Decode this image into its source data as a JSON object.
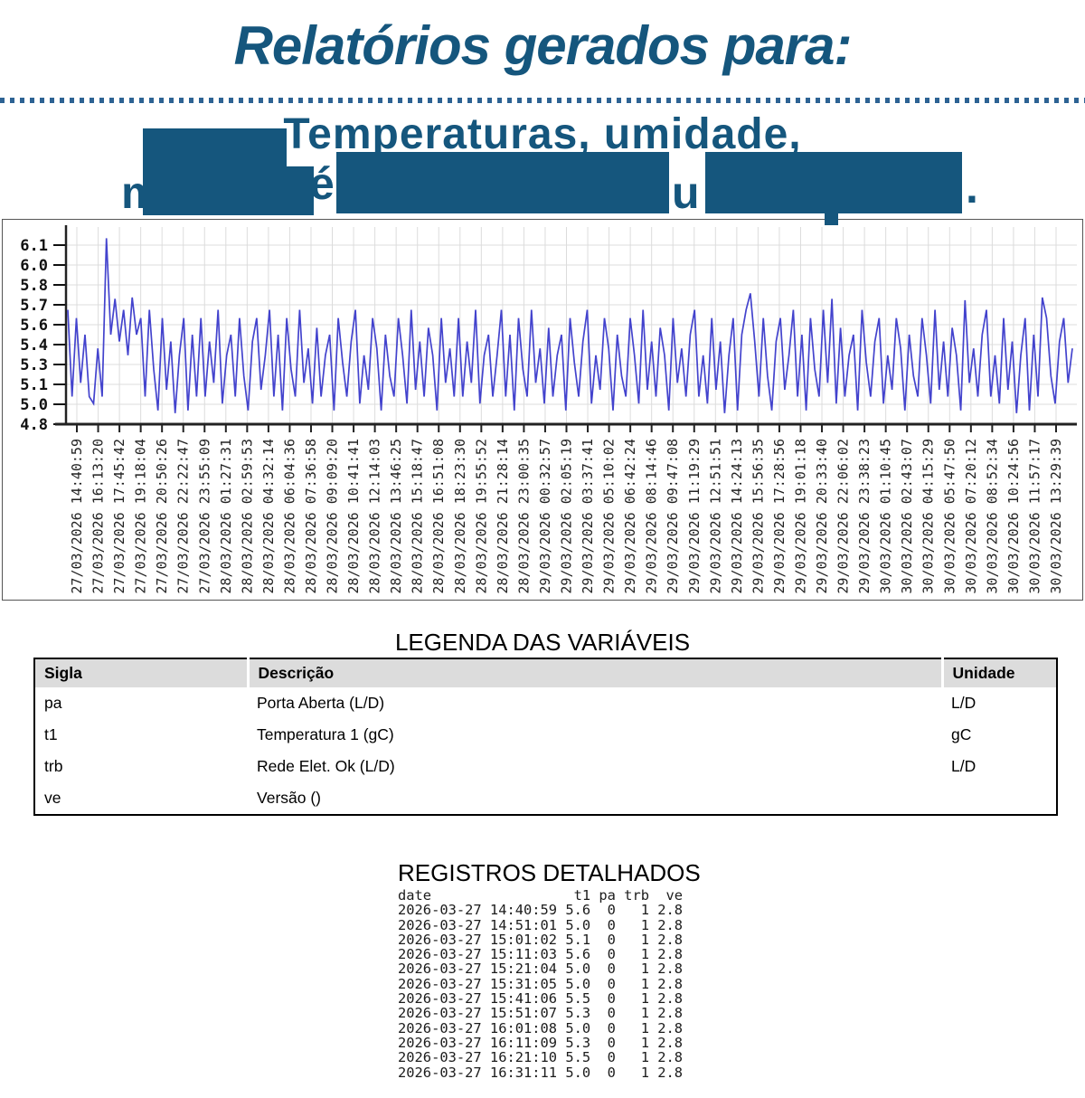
{
  "colors": {
    "accent_blue": "#15567d",
    "separator_blue": "#2d6394",
    "chart_line": "#4343cd",
    "grid": "#dcdcdc",
    "table_header_bg": "#dcdcdc"
  },
  "header": {
    "title": "Relatórios gerados para:",
    "subtitle_line1": "Temperaturas, umidade,",
    "subtitle_line2_fragments": {
      "f1": "m",
      "f2": "é",
      "f3": "u",
      "f4": "."
    }
  },
  "chart_data": {
    "type": "line",
    "title": "",
    "xlabel": "",
    "ylabel": "",
    "grid": true,
    "legend_position": "none",
    "ylim": [
      4.8,
      6.2
    ],
    "y_ticks": [
      "6.1",
      "6.0",
      "5.8",
      "5.7",
      "5.6",
      "5.4",
      "5.3",
      "5.1",
      "5.0",
      "4.8"
    ],
    "x_tick_labels": [
      "27/03/2026 14:40:59",
      "27/03/2026 16:13:20",
      "27/03/2026 17:45:42",
      "27/03/2026 19:18:04",
      "27/03/2026 20:50:26",
      "27/03/2026 22:22:47",
      "27/03/2026 23:55:09",
      "28/03/2026 01:27:31",
      "28/03/2026 02:59:53",
      "28/03/2026 04:32:14",
      "28/03/2026 06:04:36",
      "28/03/2026 07:36:58",
      "28/03/2026 09:09:20",
      "28/03/2026 10:41:41",
      "28/03/2026 12:14:03",
      "28/03/2026 13:46:25",
      "28/03/2026 15:18:47",
      "28/03/2026 16:51:08",
      "28/03/2026 18:23:30",
      "28/03/2026 19:55:52",
      "28/03/2026 21:28:14",
      "28/03/2026 23:00:35",
      "29/03/2026 00:32:57",
      "29/03/2026 02:05:19",
      "29/03/2026 03:37:41",
      "29/03/2026 05:10:02",
      "29/03/2026 06:42:24",
      "29/03/2026 08:14:46",
      "29/03/2026 09:47:08",
      "29/03/2026 11:19:29",
      "29/03/2026 12:51:51",
      "29/03/2026 14:24:13",
      "29/03/2026 15:56:35",
      "29/03/2026 17:28:56",
      "29/03/2026 19:01:18",
      "29/03/2026 20:33:40",
      "29/03/2026 22:06:02",
      "29/03/2026 23:38:23",
      "30/03/2026 01:10:45",
      "30/03/2026 02:43:07",
      "30/03/2026 04:15:29",
      "30/03/2026 05:47:50",
      "30/03/2026 07:20:12",
      "30/03/2026 08:52:34",
      "30/03/2026 10:24:56",
      "30/03/2026 11:57:17",
      "30/03/2026 13:29:39"
    ],
    "series": [
      {
        "name": "t1",
        "color": "#4343cd",
        "values": [
          5.63,
          5.0,
          5.57,
          5.1,
          5.45,
          5.0,
          4.95,
          5.35,
          5.0,
          6.15,
          5.45,
          5.71,
          5.4,
          5.63,
          5.3,
          5.72,
          5.45,
          5.57,
          5.0,
          5.63,
          5.2,
          4.9,
          5.57,
          5.05,
          5.4,
          4.88,
          5.3,
          5.57,
          4.9,
          5.45,
          5.0,
          5.57,
          5.0,
          5.4,
          5.1,
          5.63,
          4.95,
          5.3,
          5.45,
          5.0,
          5.57,
          5.15,
          4.9,
          5.4,
          5.57,
          5.05,
          5.3,
          5.63,
          5.0,
          5.45,
          4.9,
          5.57,
          5.2,
          5.0,
          5.63,
          5.1,
          5.35,
          4.95,
          5.5,
          5.0,
          5.3,
          5.45,
          4.9,
          5.57,
          5.25,
          5.0,
          5.4,
          5.63,
          4.95,
          5.3,
          5.05,
          5.57,
          5.35,
          4.9,
          5.45,
          5.15,
          5.0,
          5.57,
          5.3,
          4.95,
          5.63,
          5.05,
          5.4,
          5.0,
          5.5,
          5.3,
          4.9,
          5.57,
          5.1,
          5.35,
          5.0,
          5.57,
          5.0,
          5.4,
          5.1,
          5.63,
          4.95,
          5.3,
          5.45,
          5.0,
          5.3,
          5.63,
          5.0,
          5.45,
          4.9,
          5.57,
          5.2,
          5.0,
          5.63,
          5.1,
          5.35,
          4.95,
          5.5,
          5.0,
          5.3,
          5.45,
          4.9,
          5.57,
          5.25,
          5.0,
          5.4,
          5.63,
          4.95,
          5.3,
          5.05,
          5.57,
          5.35,
          4.9,
          5.45,
          5.15,
          5.0,
          5.57,
          5.3,
          4.95,
          5.63,
          5.05,
          5.4,
          5.0,
          5.5,
          5.3,
          4.9,
          5.57,
          5.1,
          5.35,
          5.0,
          5.45,
          5.63,
          5.0,
          5.3,
          4.95,
          5.57,
          5.05,
          5.4,
          4.88,
          5.3,
          5.57,
          4.9,
          5.45,
          5.63,
          5.75,
          5.4,
          5.0,
          5.57,
          5.15,
          4.9,
          5.4,
          5.57,
          5.05,
          5.3,
          5.63,
          5.0,
          5.45,
          4.9,
          5.57,
          5.2,
          5.0,
          5.63,
          5.1,
          5.71,
          4.95,
          5.5,
          5.0,
          5.3,
          5.45,
          4.9,
          5.63,
          5.25,
          5.0,
          5.4,
          5.57,
          4.95,
          5.3,
          5.05,
          5.57,
          5.35,
          4.9,
          5.45,
          5.15,
          5.0,
          5.57,
          5.3,
          4.95,
          5.63,
          5.05,
          5.4,
          5.0,
          5.5,
          5.3,
          4.9,
          5.7,
          5.1,
          5.35,
          5.0,
          5.45,
          5.63,
          5.0,
          5.3,
          4.95,
          5.57,
          5.05,
          5.4,
          4.88,
          5.3,
          5.57,
          4.9,
          5.45,
          5.0,
          5.72,
          5.57,
          5.15,
          4.95,
          5.4,
          5.57,
          5.1,
          5.35
        ]
      }
    ]
  },
  "legend": {
    "heading": "LEGENDA DAS VARIÁVEIS",
    "headers": [
      "Sigla",
      "Descrição",
      "Unidade"
    ],
    "rows": [
      [
        "pa",
        "Porta Aberta (L/D)",
        "L/D"
      ],
      [
        "t1",
        "Temperatura 1 (gC)",
        "gC"
      ],
      [
        "trb",
        "Rede Elet. Ok (L/D)",
        "L/D"
      ],
      [
        "ve",
        "Versão ()",
        ""
      ]
    ]
  },
  "registros": {
    "heading": "REGISTROS DETALHADOS",
    "header_line": "date                 t1 pa trb  ve",
    "rows": [
      "2026-03-27 14:40:59 5.6  0   1 2.8",
      "2026-03-27 14:51:01 5.0  0   1 2.8",
      "2026-03-27 15:01:02 5.1  0   1 2.8",
      "2026-03-27 15:11:03 5.6  0   1 2.8",
      "2026-03-27 15:21:04 5.0  0   1 2.8",
      "2026-03-27 15:31:05 5.0  0   1 2.8",
      "2026-03-27 15:41:06 5.5  0   1 2.8",
      "2026-03-27 15:51:07 5.3  0   1 2.8",
      "2026-03-27 16:01:08 5.0  0   1 2.8",
      "2026-03-27 16:11:09 5.3  0   1 2.8",
      "2026-03-27 16:21:10 5.5  0   1 2.8",
      "2026-03-27 16:31:11 5.0  0   1 2.8"
    ]
  }
}
